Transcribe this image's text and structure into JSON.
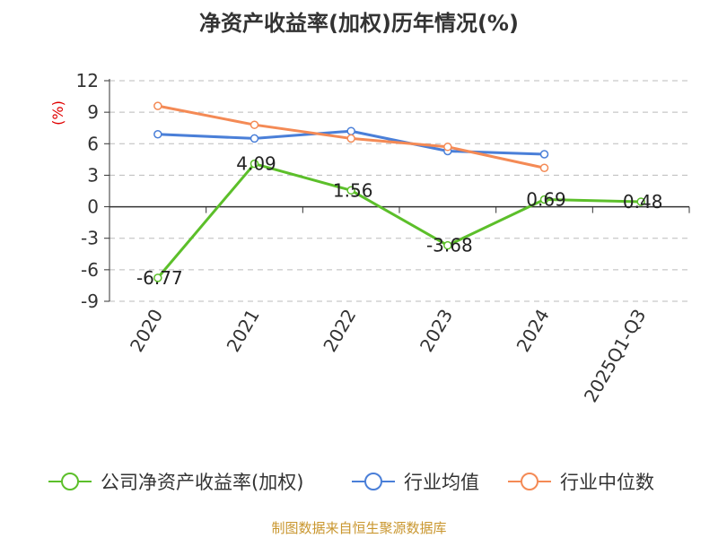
{
  "chart_data": {
    "type": "line",
    "title": "净资产收益率(加权)历年情况(%)",
    "unit_label": "(%)",
    "categories": [
      "2020",
      "2021",
      "2022",
      "2023",
      "2024",
      "2025Q1-Q3"
    ],
    "ylim": [
      -9,
      12
    ],
    "yticks": [
      12,
      9,
      6,
      3,
      0,
      -3,
      -6,
      -9
    ],
    "ytick_labels": [
      "12",
      "9",
      "6",
      "3",
      "0",
      "-3",
      "-6",
      "-9"
    ],
    "grid": true,
    "legend_position": "bottom",
    "series": [
      {
        "name": "公司净资产收益率(加权)",
        "color": "#5cbf2a",
        "values": [
          -6.77,
          4.09,
          1.56,
          -3.68,
          0.69,
          0.48
        ],
        "labels": [
          "-6.77",
          "4.09",
          "1.56",
          "-3.68",
          "0.69",
          "0.48"
        ]
      },
      {
        "name": "行业均值",
        "color": "#4a7fd8",
        "values": [
          6.9,
          6.5,
          7.2,
          5.3,
          5.0,
          null
        ]
      },
      {
        "name": "行业中位数",
        "color": "#f48a55",
        "values": [
          9.6,
          7.8,
          6.5,
          5.7,
          3.7,
          null
        ]
      }
    ],
    "source": "制图数据来自恒生聚源数据库"
  }
}
